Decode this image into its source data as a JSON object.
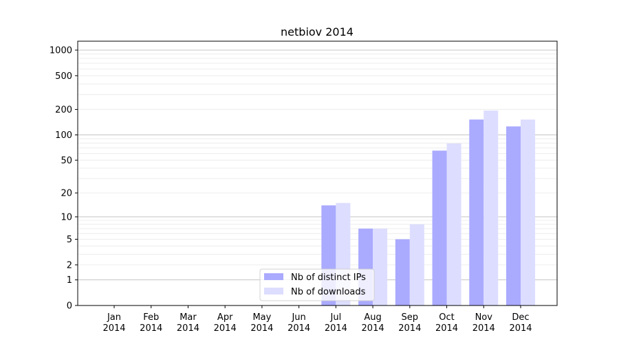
{
  "chart_data": {
    "type": "bar",
    "title": "netbiov 2014",
    "xlabel": "",
    "ylabel": "",
    "yscale": "log10(1+y)",
    "ylim": [
      0,
      1273
    ],
    "yticks": [
      0,
      1,
      2,
      5,
      10,
      20,
      50,
      100,
      200,
      500,
      1000
    ],
    "grid": true,
    "legend_placement": "bottom-center",
    "categories": [
      "Jan\n2014",
      "Feb\n2014",
      "Mar\n2014",
      "Apr\n2014",
      "May\n2014",
      "Jun\n2014",
      "Jul\n2014",
      "Aug\n2014",
      "Sep\n2014",
      "Oct\n2014",
      "Nov\n2014",
      "Dec\n2014"
    ],
    "series": [
      {
        "name": "Nb of distinct IPs",
        "color": "#aaaaff",
        "values": [
          0,
          0,
          0,
          0,
          0,
          0,
          14,
          7,
          5,
          65,
          152,
          126
        ]
      },
      {
        "name": "Nb of downloads",
        "color": "#ddddff",
        "values": [
          0,
          0,
          0,
          0,
          0,
          0,
          15,
          7,
          8,
          79,
          194,
          152
        ]
      }
    ]
  }
}
